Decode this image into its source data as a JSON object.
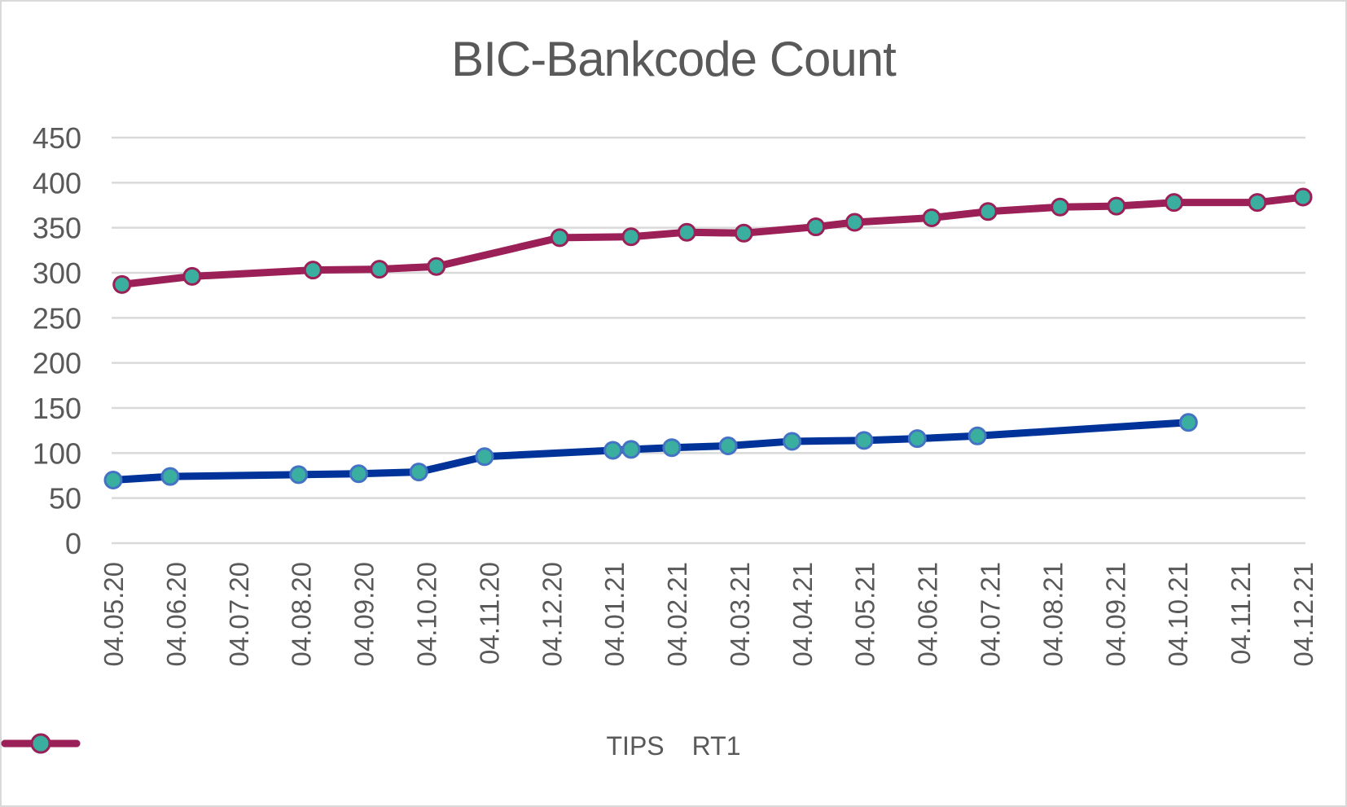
{
  "chart_data": {
    "type": "line",
    "title": "BIC-Bankcode Count",
    "xlabel": "",
    "ylabel": "",
    "ylim": [
      0,
      450
    ],
    "yticks": [
      0,
      50,
      100,
      150,
      200,
      250,
      300,
      350,
      400,
      450
    ],
    "grid": true,
    "legend_position": "bottom",
    "categories": [
      "04.05.20",
      "04.06.20",
      "04.07.20",
      "04.08.20",
      "04.09.20",
      "04.10.20",
      "04.11.20",
      "04.12.20",
      "04.01.21",
      "04.02.21",
      "04.03.21",
      "04.04.21",
      "04.05.21",
      "04.06.21",
      "04.07.21",
      "04.08.21",
      "04.09.21",
      "04.10.21",
      "04.11.21",
      "04.12.21"
    ],
    "series": [
      {
        "name": "TIPS",
        "color": "#003399",
        "marker_fill": "#3aafa0",
        "marker_edge": "#4472c4",
        "x": [
          0,
          0.91,
          2.96,
          3.92,
          4.88,
          5.93,
          7.98,
          8.27,
          8.92,
          9.82,
          10.84,
          11.99,
          12.84,
          13.8,
          17.17
        ],
        "values": [
          70,
          74,
          76,
          77,
          79,
          96,
          103,
          104,
          106,
          108,
          113,
          114,
          116,
          119,
          134
        ]
      },
      {
        "name": "RT1",
        "color": "#9b2057",
        "marker_fill": "#3aafa0",
        "marker_edge": "#9b2057",
        "x": [
          0.14,
          1.26,
          3.19,
          4.25,
          5.16,
          7.13,
          8.27,
          9.16,
          10.07,
          11.22,
          11.84,
          13.07,
          13.97,
          15.12,
          16.02,
          16.94,
          18.27,
          19.0
        ],
        "values": [
          287,
          296,
          303,
          304,
          307,
          339,
          340,
          345,
          344,
          351,
          356,
          361,
          368,
          373,
          374,
          378,
          378,
          384
        ]
      }
    ]
  }
}
